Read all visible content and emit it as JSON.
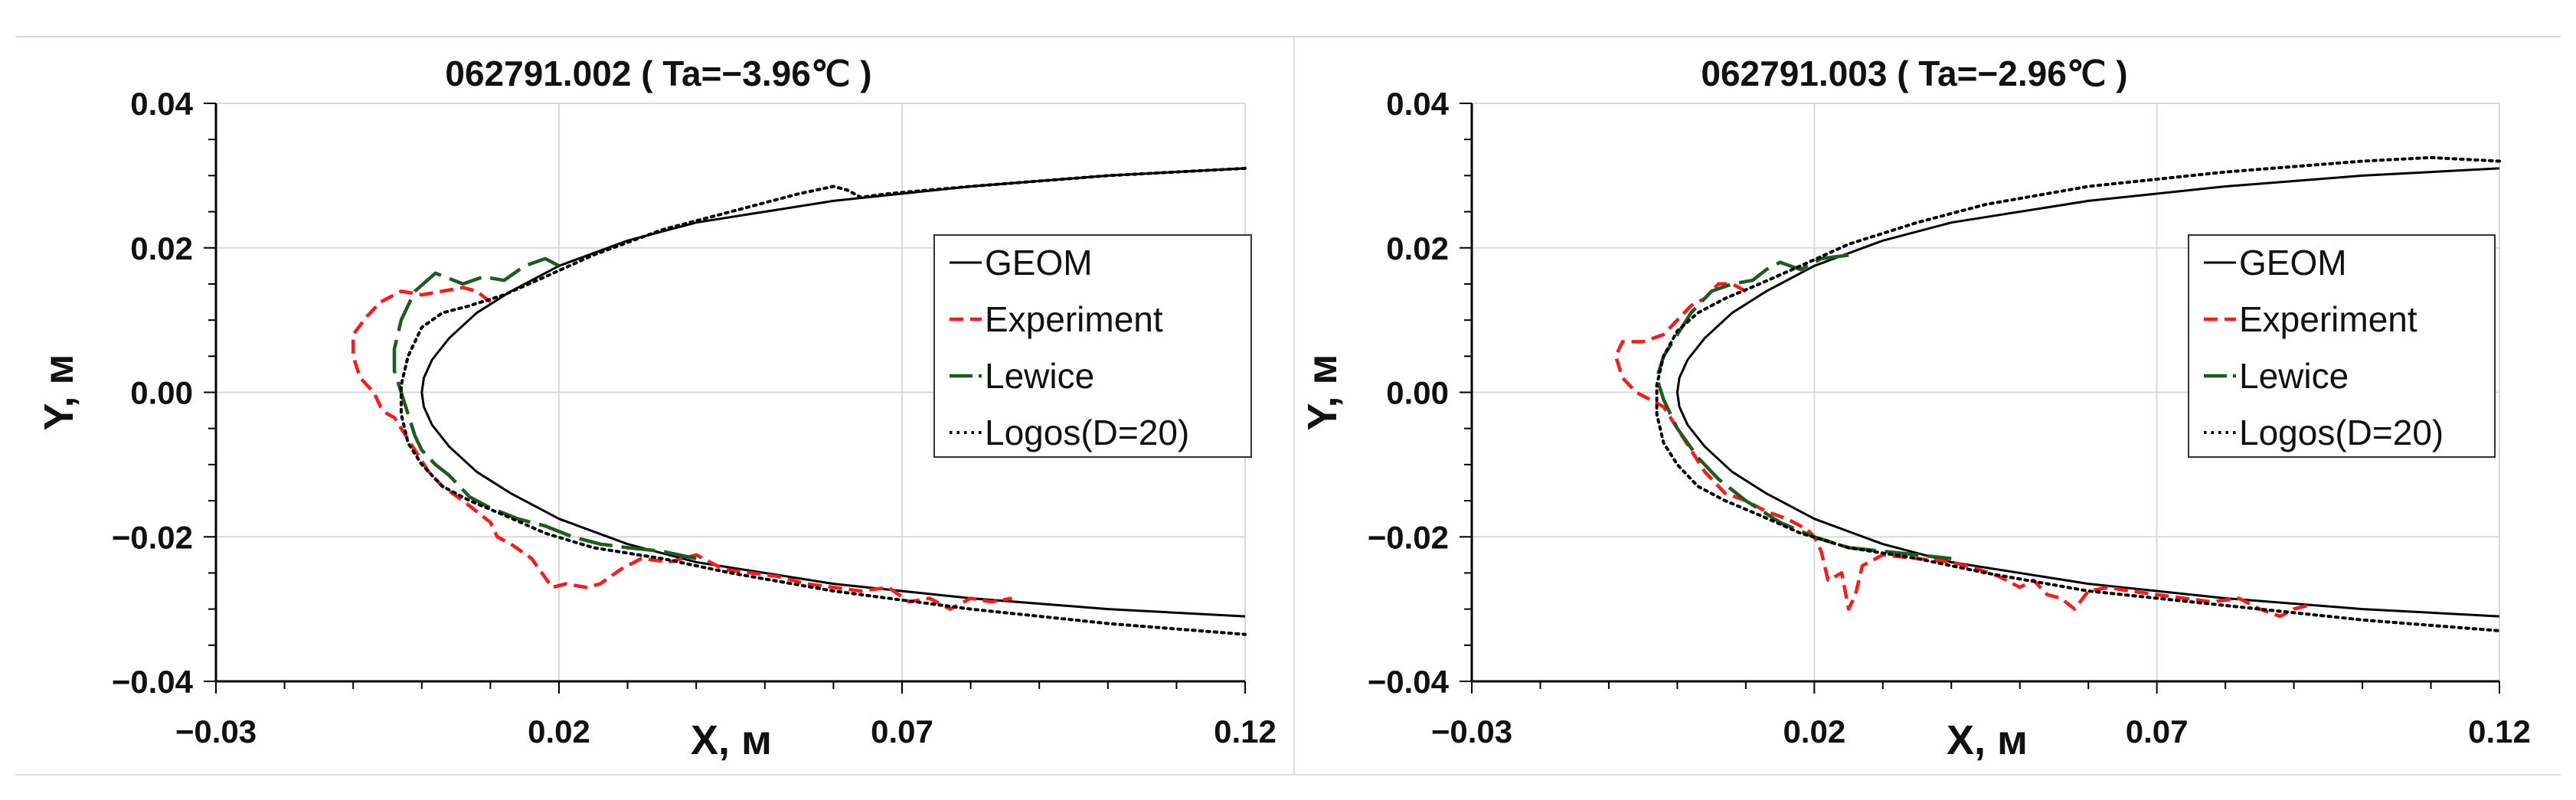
{
  "chart_data": [
    {
      "type": "line",
      "title": "062791.002 ( Ta=−3.96℃ )",
      "xlabel": "X, м",
      "ylabel": "Y, м",
      "xlim": [
        -0.03,
        0.12
      ],
      "ylim": [
        -0.04,
        0.04
      ],
      "xticks": [
        "−0.03",
        "0.02",
        "0.07",
        "0.12"
      ],
      "yticks": [
        "0.04",
        "0.02",
        "0.00",
        "−0.02",
        "−0.04"
      ],
      "grid": true,
      "legend_position": "right",
      "series": [
        {
          "name": "GEOM",
          "color": "#000000",
          "style": "solid",
          "x": [
            0.12,
            0.1,
            0.08,
            0.06,
            0.04,
            0.03,
            0.02,
            0.013,
            0.008,
            0.004,
            0.0015,
            0.0003,
            0.0,
            0.0003,
            0.0015,
            0.004,
            0.008,
            0.013,
            0.02,
            0.03,
            0.04,
            0.06,
            0.08,
            0.1,
            0.12
          ],
          "y": [
            0.031,
            0.03,
            0.0285,
            0.0265,
            0.0235,
            0.021,
            0.0175,
            0.014,
            0.011,
            0.0075,
            0.0045,
            0.002,
            0.0,
            -0.002,
            -0.0045,
            -0.0075,
            -0.011,
            -0.014,
            -0.0175,
            -0.021,
            -0.0235,
            -0.0265,
            -0.0285,
            -0.03,
            -0.031
          ]
        },
        {
          "name": "Experiment",
          "color": "#ff1a1a",
          "style": "dashed",
          "x": [
            0.01,
            0.008,
            0.006,
            0.003,
            0.0,
            -0.003,
            -0.006,
            -0.008,
            -0.01,
            -0.01,
            -0.009,
            -0.007,
            -0.006,
            -0.005,
            -0.004,
            -0.003,
            -0.001,
            0.001,
            0.003,
            0.006,
            0.008,
            0.01,
            0.011,
            0.013,
            0.016,
            0.019,
            0.021,
            0.024,
            0.026,
            0.029,
            0.032,
            0.036,
            0.04,
            0.044,
            0.048,
            0.052,
            0.056,
            0.06,
            0.064,
            0.068,
            0.071,
            0.074,
            0.077,
            0.08,
            0.083,
            0.086
          ],
          "y": [
            0.0125,
            0.014,
            0.0145,
            0.014,
            0.0135,
            0.014,
            0.0125,
            0.0105,
            0.008,
            0.005,
            0.002,
            0.0,
            -0.002,
            -0.003,
            -0.0035,
            -0.005,
            -0.008,
            -0.011,
            -0.013,
            -0.015,
            -0.0165,
            -0.018,
            -0.02,
            -0.021,
            -0.023,
            -0.027,
            -0.0265,
            -0.027,
            -0.0265,
            -0.0245,
            -0.023,
            -0.0235,
            -0.0225,
            -0.0245,
            -0.025,
            -0.0255,
            -0.0265,
            -0.027,
            -0.0275,
            -0.027,
            -0.029,
            -0.0285,
            -0.03,
            -0.0285,
            -0.029,
            -0.0285
          ]
        },
        {
          "name": "Lewice",
          "color": "#1e5c1e",
          "style": "longdash",
          "x": [
            0.02,
            0.018,
            0.015,
            0.012,
            0.009,
            0.006,
            0.002,
            -0.001,
            -0.003,
            -0.004,
            -0.004,
            -0.003,
            -0.002,
            -0.001,
            0.0,
            0.002,
            0.004,
            0.007,
            0.01,
            0.014,
            0.018,
            0.022,
            0.026,
            0.03,
            0.035,
            0.04
          ],
          "y": [
            0.0175,
            0.0185,
            0.0175,
            0.0155,
            0.016,
            0.015,
            0.0165,
            0.014,
            0.01,
            0.006,
            0.003,
            0.0,
            -0.003,
            -0.006,
            -0.008,
            -0.01,
            -0.0115,
            -0.0145,
            -0.016,
            -0.0175,
            -0.0185,
            -0.02,
            -0.021,
            -0.0215,
            -0.022,
            -0.023
          ]
        },
        {
          "name": "Logos(D=20)",
          "color": "#000000",
          "style": "dotted",
          "x": [
            0.12,
            0.1,
            0.08,
            0.068,
            0.064,
            0.062,
            0.06,
            0.055,
            0.045,
            0.035,
            0.025,
            0.018,
            0.012,
            0.007,
            0.003,
            0.0,
            -0.002,
            -0.003,
            -0.003,
            -0.002,
            0.0,
            0.003,
            0.007,
            0.012,
            0.018,
            0.025,
            0.035,
            0.045,
            0.06,
            0.08,
            0.1,
            0.12
          ],
          "y": [
            0.031,
            0.03,
            0.0285,
            0.0275,
            0.027,
            0.028,
            0.0285,
            0.0275,
            0.025,
            0.0225,
            0.019,
            0.016,
            0.0135,
            0.012,
            0.011,
            0.009,
            0.005,
            0.001,
            -0.003,
            -0.007,
            -0.01,
            -0.013,
            -0.015,
            -0.017,
            -0.0195,
            -0.0215,
            -0.023,
            -0.025,
            -0.0275,
            -0.03,
            -0.032,
            -0.0335
          ]
        }
      ]
    },
    {
      "type": "line",
      "title": "062791.003 ( Ta=−2.96℃ )",
      "xlabel": "X, м",
      "ylabel": "Y, м",
      "xlim": [
        -0.03,
        0.12
      ],
      "ylim": [
        -0.04,
        0.04
      ],
      "xticks": [
        "−0.03",
        "0.02",
        "0.07",
        "0.12"
      ],
      "yticks": [
        "0.04",
        "0.02",
        "0.00",
        "−0.02",
        "−0.04"
      ],
      "grid": true,
      "legend_position": "right",
      "series": [
        {
          "name": "GEOM",
          "color": "#000000",
          "style": "solid",
          "x": [
            0.12,
            0.1,
            0.08,
            0.06,
            0.04,
            0.03,
            0.02,
            0.013,
            0.008,
            0.004,
            0.0015,
            0.0003,
            0.0,
            0.0003,
            0.0015,
            0.004,
            0.008,
            0.013,
            0.02,
            0.03,
            0.04,
            0.06,
            0.08,
            0.1,
            0.12
          ],
          "y": [
            0.031,
            0.03,
            0.0285,
            0.0265,
            0.0235,
            0.021,
            0.0175,
            0.014,
            0.011,
            0.0075,
            0.0045,
            0.002,
            0.0,
            -0.002,
            -0.0045,
            -0.0075,
            -0.011,
            -0.014,
            -0.0175,
            -0.021,
            -0.0235,
            -0.0265,
            -0.0285,
            -0.03,
            -0.031
          ]
        },
        {
          "name": "Experiment",
          "color": "#ff1a1a",
          "style": "dashed",
          "x": [
            0.01,
            0.008,
            0.006,
            0.004,
            0.002,
            0.0,
            -0.002,
            -0.005,
            -0.008,
            -0.009,
            -0.008,
            -0.006,
            -0.004,
            -0.002,
            0.0,
            0.002,
            0.004,
            0.007,
            0.01,
            0.013,
            0.016,
            0.019,
            0.02,
            0.021,
            0.022,
            0.024,
            0.025,
            0.026,
            0.027,
            0.03,
            0.035,
            0.04,
            0.044,
            0.047,
            0.05,
            0.052,
            0.054,
            0.056,
            0.058,
            0.06,
            0.063,
            0.066,
            0.07,
            0.074,
            0.078,
            0.082,
            0.085,
            0.088,
            0.09,
            0.092
          ],
          "y": [
            0.014,
            0.015,
            0.015,
            0.013,
            0.012,
            0.01,
            0.008,
            0.007,
            0.007,
            0.005,
            0.002,
            0.0,
            -0.001,
            -0.002,
            -0.005,
            -0.008,
            -0.011,
            -0.014,
            -0.015,
            -0.0165,
            -0.0175,
            -0.019,
            -0.02,
            -0.022,
            -0.026,
            -0.025,
            -0.03,
            -0.028,
            -0.024,
            -0.0225,
            -0.023,
            -0.0235,
            -0.0245,
            -0.0255,
            -0.027,
            -0.026,
            -0.028,
            -0.0285,
            -0.03,
            -0.0275,
            -0.027,
            -0.0275,
            -0.028,
            -0.0285,
            -0.029,
            -0.0285,
            -0.03,
            -0.031,
            -0.03,
            -0.0295
          ]
        },
        {
          "name": "Lewice",
          "color": "#1e5c1e",
          "style": "longdash",
          "x": [
            0.025,
            0.021,
            0.018,
            0.015,
            0.013,
            0.011,
            0.008,
            0.005,
            0.002,
            0.0,
            -0.002,
            -0.003,
            -0.002,
            0.0,
            0.003,
            0.006,
            0.01,
            0.015,
            0.02,
            0.025,
            0.03,
            0.035,
            0.04
          ],
          "y": [
            0.019,
            0.0185,
            0.017,
            0.018,
            0.017,
            0.0155,
            0.015,
            0.014,
            0.011,
            0.008,
            0.005,
            0.002,
            -0.001,
            -0.005,
            -0.009,
            -0.012,
            -0.015,
            -0.018,
            -0.02,
            -0.0215,
            -0.022,
            -0.0225,
            -0.023
          ]
        },
        {
          "name": "Logos(D=20)",
          "color": "#000000",
          "style": "dotted",
          "x": [
            0.12,
            0.11,
            0.1,
            0.08,
            0.06,
            0.045,
            0.035,
            0.025,
            0.018,
            0.012,
            0.007,
            0.003,
            0.0,
            -0.002,
            -0.003,
            -0.003,
            -0.002,
            0.0,
            0.003,
            0.007,
            0.012,
            0.018,
            0.025,
            0.035,
            0.045,
            0.06,
            0.08,
            0.1,
            0.12
          ],
          "y": [
            0.032,
            0.0325,
            0.032,
            0.0305,
            0.0285,
            0.026,
            0.0235,
            0.0205,
            0.0175,
            0.015,
            0.013,
            0.011,
            0.0085,
            0.005,
            0.001,
            -0.003,
            -0.007,
            -0.01,
            -0.013,
            -0.015,
            -0.017,
            -0.0195,
            -0.0215,
            -0.023,
            -0.025,
            -0.0275,
            -0.0295,
            -0.0315,
            -0.033
          ]
        }
      ]
    }
  ]
}
